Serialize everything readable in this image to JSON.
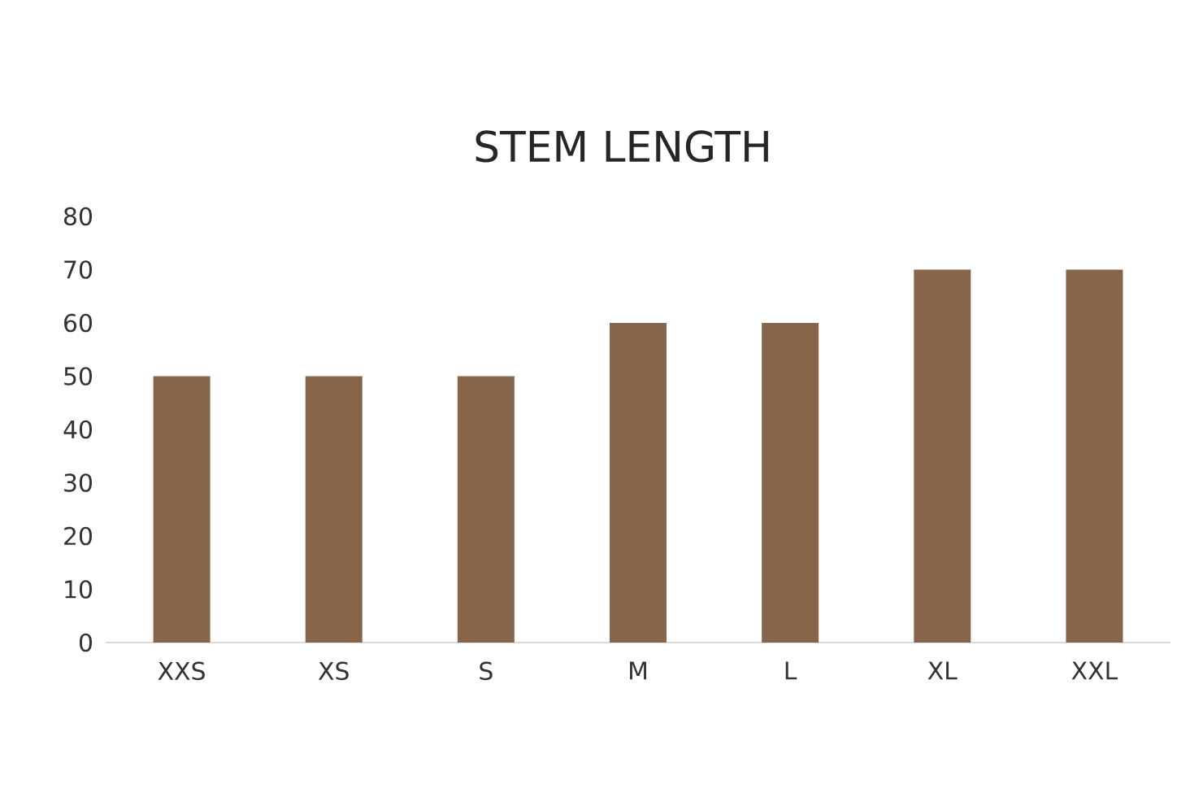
{
  "chart_data": {
    "type": "bar",
    "title": "STEM LENGTH",
    "categories": [
      "XXS",
      "XS",
      "S",
      "M",
      "L",
      "XL",
      "XXL"
    ],
    "values": [
      50,
      50,
      50,
      60,
      60,
      70,
      70
    ],
    "color": "#86654a",
    "ylim": [
      0,
      80
    ],
    "yticks": [
      0,
      10,
      20,
      30,
      40,
      50,
      60,
      70,
      80
    ]
  }
}
